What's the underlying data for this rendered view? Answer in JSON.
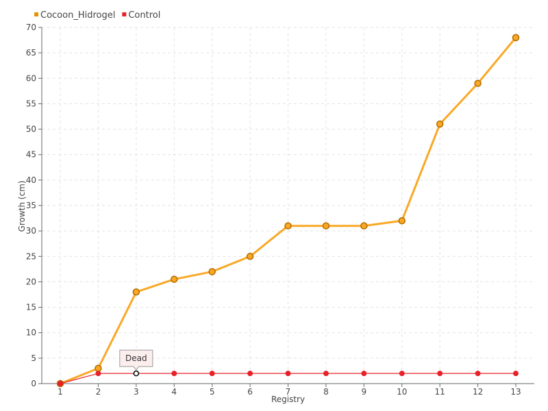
{
  "chart_data": {
    "type": "line",
    "xlabel": "Registry",
    "ylabel": "Growth (cm)",
    "x": [
      1,
      2,
      3,
      4,
      5,
      6,
      7,
      8,
      9,
      10,
      11,
      12,
      13
    ],
    "ylim": [
      0,
      70
    ],
    "ytick_step": 5,
    "grid": true,
    "legend_position": "top-left",
    "series": [
      {
        "name": "Cocoon_Hidrogel",
        "color": "#f9a825",
        "marker_color": "#e59400",
        "values": [
          0,
          3,
          18,
          20.5,
          22,
          25,
          31,
          31,
          31,
          32,
          51,
          59,
          68
        ]
      },
      {
        "name": "Control",
        "color": "#e8202a",
        "marker_color": "#e8202a",
        "values": [
          0,
          2,
          2,
          2,
          2,
          2,
          2,
          2,
          2,
          2,
          2,
          2,
          2
        ]
      }
    ],
    "annotations": [
      {
        "text": "Dead",
        "series": "Control",
        "x": 3
      }
    ]
  }
}
